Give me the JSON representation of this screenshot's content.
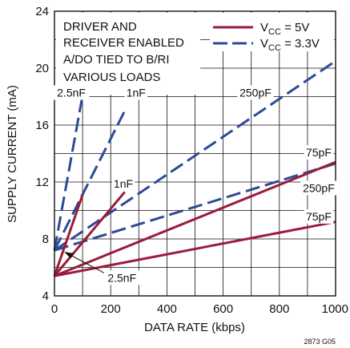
{
  "chart_data": {
    "type": "line",
    "xlabel": "DATA RATE (kbps)",
    "ylabel": "SUPPLY CURRENT (mA)",
    "xlim": [
      0,
      1000
    ],
    "ylim": [
      4,
      24
    ],
    "x_ticks": [
      "0",
      "200",
      "400",
      "600",
      "800",
      "1000"
    ],
    "y_ticks": [
      "4",
      "8",
      "12",
      "16",
      "20",
      "24"
    ],
    "grid": true,
    "notes": [
      "DRIVER AND",
      "RECEIVER ENABLED",
      "A/DO TIED TO B/RI",
      "VARIOUS LOADS"
    ],
    "legend": {
      "placement": "top-right",
      "entries": [
        {
          "base": "V",
          "sub": "CC",
          "rest": " = 5V",
          "color": "#9b1b3b",
          "dash": "solid"
        },
        {
          "base": "V",
          "sub": "CC",
          "rest": " = 3.3V",
          "color": "#2b4b96",
          "dash": "dashed"
        }
      ]
    },
    "series": [
      {
        "label": "2.5nF",
        "supply": "5V",
        "color": "#9b1b3b",
        "dash": "solid",
        "x": [
          0,
          100
        ],
        "y": [
          5.4,
          11.1
        ]
      },
      {
        "label": "1nF",
        "supply": "5V",
        "color": "#9b1b3b",
        "dash": "solid",
        "x": [
          0,
          250
        ],
        "y": [
          5.4,
          11.3
        ]
      },
      {
        "label": "250pF",
        "supply": "5V",
        "color": "#9b1b3b",
        "dash": "solid",
        "x": [
          0,
          1000
        ],
        "y": [
          5.4,
          13.4
        ]
      },
      {
        "label": "75pF",
        "supply": "5V",
        "color": "#9b1b3b",
        "dash": "solid",
        "x": [
          0,
          1000
        ],
        "y": [
          5.4,
          9.2
        ]
      },
      {
        "label": "2.5nF",
        "supply": "3.3V",
        "color": "#2b4b96",
        "dash": "dashed",
        "x": [
          0,
          100
        ],
        "y": [
          7.2,
          18.1
        ]
      },
      {
        "label": "1nF",
        "supply": "3.3V",
        "color": "#2b4b96",
        "dash": "dashed",
        "x": [
          0,
          250
        ],
        "y": [
          7.2,
          17.0
        ]
      },
      {
        "label": "250pF",
        "supply": "3.3V",
        "color": "#2b4b96",
        "dash": "dashed",
        "x": [
          0,
          1000
        ],
        "y": [
          7.2,
          20.5
        ]
      },
      {
        "label": "75pF",
        "supply": "3.3V",
        "color": "#2b4b96",
        "dash": "dashed",
        "x": [
          0,
          1000
        ],
        "y": [
          7.2,
          13.3
        ]
      }
    ],
    "annotations": [
      {
        "text": "2.5nF",
        "x": 60,
        "y": 18.0
      },
      {
        "text": "1nF",
        "x": 290,
        "y": 18.0
      },
      {
        "text": "250pF",
        "x": 715,
        "y": 18.0
      },
      {
        "text": "1nF",
        "x": 245,
        "y": 11.6
      },
      {
        "text": "75pF",
        "x": 940,
        "y": 13.8
      },
      {
        "text": "250pF",
        "x": 940,
        "y": 11.3
      },
      {
        "text": "75pF",
        "x": 940,
        "y": 9.3
      },
      {
        "text": "2.5nF",
        "x": 240,
        "y": 5.0
      }
    ],
    "figure_code": "2873 G05"
  }
}
